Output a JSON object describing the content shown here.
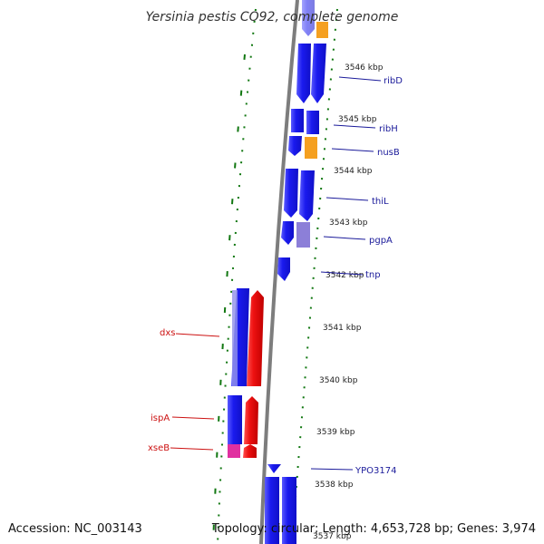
{
  "title": "Yersinia pestis CO92, complete genome",
  "footer": {
    "accession": "Accession: NC_003143",
    "summary": "Topology: circular; Length: 4,653,728 bp; Genes: 3,974"
  },
  "ticks": [
    {
      "label": "3546 kbp"
    },
    {
      "label": "3545 kbp"
    },
    {
      "label": "3544 kbp"
    },
    {
      "label": "3543 kbp"
    },
    {
      "label": "3542 kbp"
    },
    {
      "label": "3541 kbp"
    },
    {
      "label": "3540 kbp"
    },
    {
      "label": "3539 kbp"
    },
    {
      "label": "3538 kbp"
    },
    {
      "label": "3537 kbp"
    }
  ],
  "genes_right": [
    {
      "name": "ribD"
    },
    {
      "name": "ribH"
    },
    {
      "name": "nusB"
    },
    {
      "name": "thiL"
    },
    {
      "name": "pgpA"
    },
    {
      "name": "tnp"
    },
    {
      "name": "YPO3174"
    }
  ],
  "genes_left": [
    {
      "name": "dxs"
    },
    {
      "name": "ispA"
    },
    {
      "name": "xseB"
    }
  ],
  "colors": {
    "forward_strand": "#1a1aee",
    "reverse_strand": "#ee1111",
    "orange_feature": "#f5a020",
    "magenta_feature": "#e030a0",
    "lavender_feature": "#8c7fd8",
    "right_label": "#1a1a9a",
    "left_label": "#cc1111",
    "backbone": "#888888",
    "dotted_track": "#117711"
  }
}
